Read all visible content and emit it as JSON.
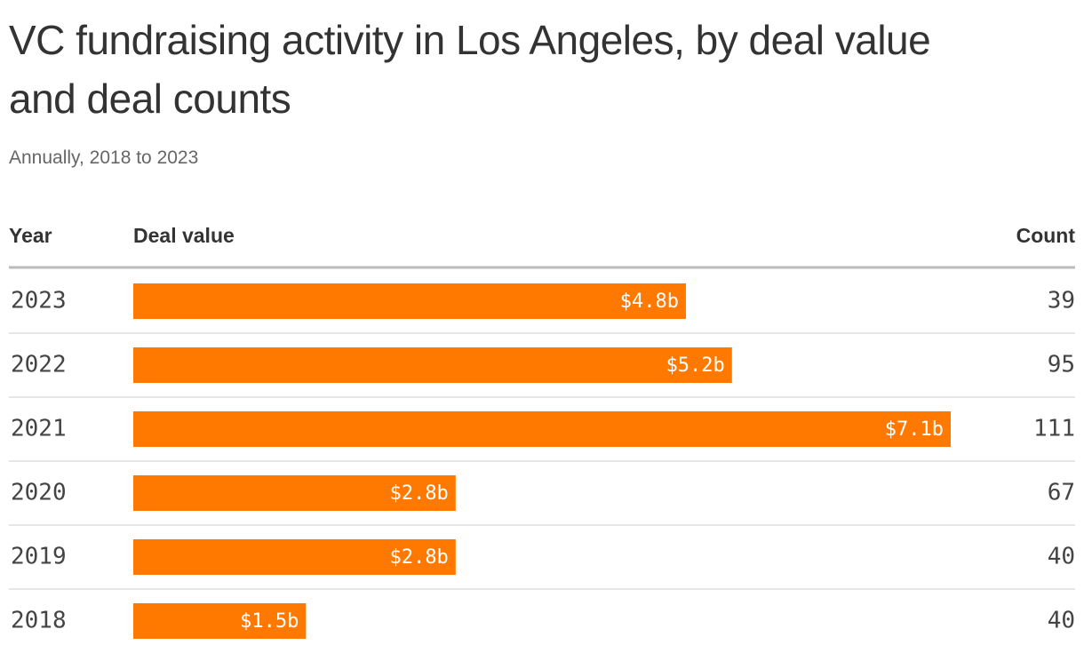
{
  "chart_data": {
    "type": "bar",
    "orientation": "horizontal",
    "title": "VC fundraising activity in Los Angeles, by deal value and deal counts",
    "subtitle": "Annually, 2018 to 2023",
    "column_headers": [
      "Year",
      "Deal value",
      "Count"
    ],
    "categories": [
      "2023",
      "2022",
      "2021",
      "2020",
      "2019",
      "2018"
    ],
    "values": [
      4.8,
      5.2,
      7.1,
      2.8,
      2.8,
      1.5
    ],
    "value_labels": [
      "$4.8b",
      "$5.2b",
      "$7.1b",
      "$2.8b",
      "$2.8b",
      "$1.5b"
    ],
    "counts": [
      39,
      95,
      111,
      67,
      40,
      40
    ],
    "color": "#ff7900"
  }
}
